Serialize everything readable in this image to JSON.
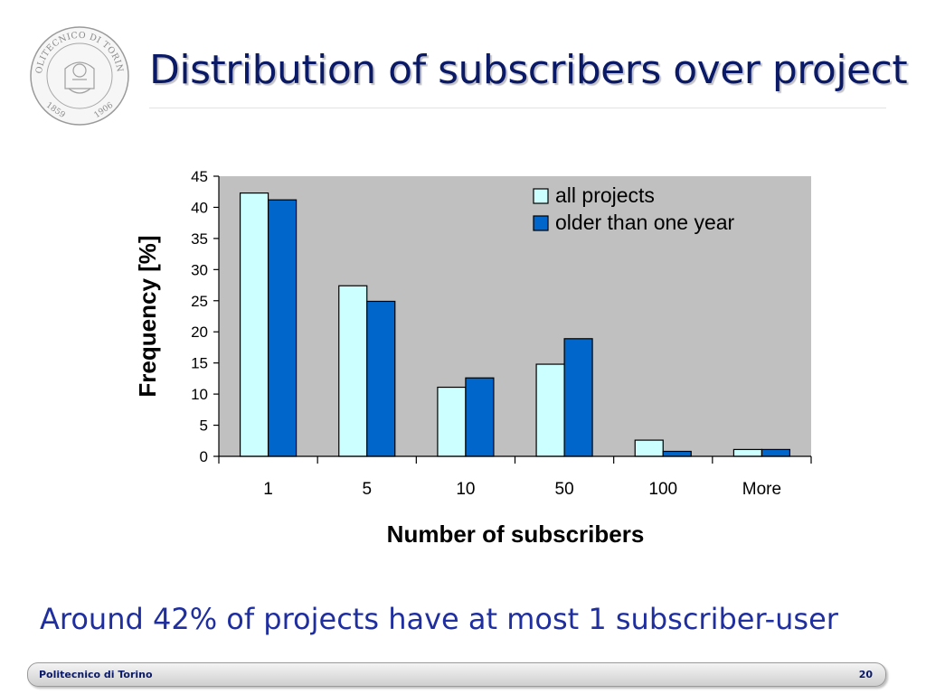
{
  "slide": {
    "title": "Distribution of subscribers over project",
    "caption": "Around 42% of projects have at most 1 subscriber-user",
    "footer_text": "Politecnico di Torino",
    "page_number": "20",
    "logo": {
      "ring_text": "POLITECNICO DI TORINO",
      "year_left": "1859",
      "year_right": "1906"
    }
  },
  "colors": {
    "title": "#0a1a66",
    "caption": "#1f2fa0",
    "plot_bg": "#c0c0c0",
    "series_all": "#ccffff",
    "series_older": "#0066cc"
  },
  "chart_data": {
    "type": "bar",
    "title": "",
    "xlabel": "Number of subscribers",
    "ylabel": "Frequency [%]",
    "categories": [
      "1",
      "5",
      "10",
      "50",
      "100",
      "More"
    ],
    "ylim": [
      0,
      45
    ],
    "yticks": [
      0,
      5,
      10,
      15,
      20,
      25,
      30,
      35,
      40,
      45
    ],
    "grid": false,
    "legend_position": "top-right",
    "series": [
      {
        "name": "all projects",
        "values": [
          42.3,
          27.4,
          11.1,
          14.8,
          2.6,
          1.1
        ]
      },
      {
        "name": "older than one year",
        "values": [
          41.2,
          24.9,
          12.6,
          18.9,
          0.8,
          1.1
        ]
      }
    ]
  }
}
